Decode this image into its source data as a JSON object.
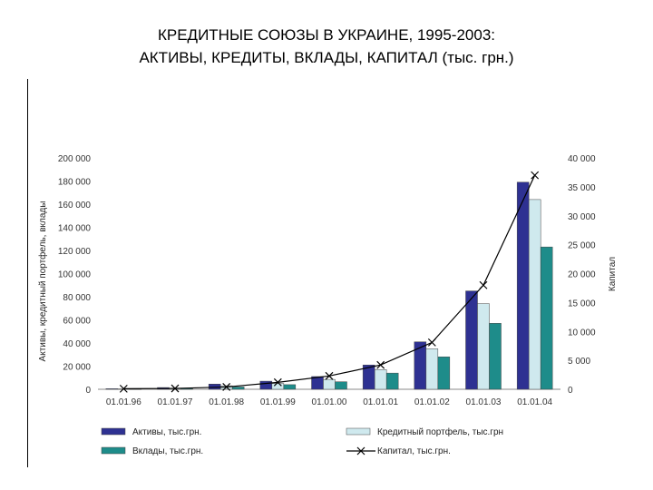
{
  "title_line1": "КРЕДИТНЫЕ СОЮЗЫ В УКРАИНЕ, 1995-2003:",
  "title_line2": "АКТИВЫ, КРЕДИТЫ,  ВКЛАДЫ, КАПИТАЛ (тыс. грн.)",
  "chart_data": {
    "type": "bar",
    "categories": [
      "01.01.96",
      "01.01.97",
      "01.01.98",
      "01.01.99",
      "01.01.00",
      "01.01.01",
      "01.01.02",
      "01.01.03",
      "01.01.04"
    ],
    "ylabel_left": "Активы, кредитный портфель, вклады",
    "ylabel_right": "Капитал",
    "ylim_left": [
      0,
      200000
    ],
    "ylim_right": [
      0,
      40000
    ],
    "yticks_left": [
      "0",
      "20 000",
      "40 000",
      "60 000",
      "80 000",
      "100 000",
      "120 000",
      "140 000",
      "160 000",
      "180 000",
      "200 000"
    ],
    "yticks_right": [
      "0",
      "5 000",
      "10 000",
      "15 000",
      "20 000",
      "25 000",
      "30 000",
      "35 000",
      "40 000"
    ],
    "series": [
      {
        "name": "Активы, тыс.грн.",
        "color": "#2e3192",
        "axis": "left",
        "kind": "bar",
        "values": [
          500,
          1500,
          4500,
          7000,
          11000,
          21000,
          41000,
          85000,
          179000
        ]
      },
      {
        "name": "Кредитный портфель, тыс.грн",
        "color": "#cfe9ee",
        "axis": "left",
        "kind": "bar",
        "values": [
          300,
          1000,
          3000,
          5000,
          8500,
          17000,
          35000,
          74000,
          164000
        ]
      },
      {
        "name": "Вклады, тыс.грн.",
        "color": "#1e8c8a",
        "axis": "left",
        "kind": "bar",
        "values": [
          200,
          700,
          2000,
          4000,
          6500,
          14000,
          28000,
          57000,
          123000
        ]
      },
      {
        "name": "Капитал, тыс.грн.",
        "color": "#000000",
        "axis": "right",
        "kind": "line",
        "values": [
          100,
          150,
          400,
          1200,
          2300,
          4200,
          8100,
          18000,
          37000
        ]
      }
    ],
    "legend": "bottom",
    "grid": false
  }
}
